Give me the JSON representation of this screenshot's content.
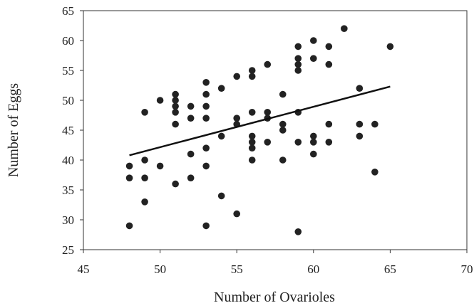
{
  "chart_data": {
    "type": "scatter",
    "title": "",
    "xlabel": "Number of Ovarioles",
    "ylabel": "Number of Eggs",
    "xlim": [
      45,
      70
    ],
    "ylim": [
      25,
      65
    ],
    "xticks": [
      "45",
      "50",
      "55",
      "60",
      "65",
      "70"
    ],
    "yticks": [
      "25",
      "30",
      "35",
      "40",
      "45",
      "50",
      "55",
      "60",
      "65"
    ],
    "grid": false,
    "legend": "none",
    "marker_color": "#222222",
    "trendline": {
      "x": [
        48,
        65
      ],
      "y": [
        40.8,
        52.3
      ]
    },
    "series": [
      {
        "points": [
          [
            48,
            39
          ],
          [
            48,
            37
          ],
          [
            48,
            29
          ],
          [
            49,
            48
          ],
          [
            49,
            40
          ],
          [
            49,
            37
          ],
          [
            49,
            33
          ],
          [
            50,
            50
          ],
          [
            50,
            39
          ],
          [
            51,
            51
          ],
          [
            51,
            50
          ],
          [
            51,
            49
          ],
          [
            51,
            48
          ],
          [
            51,
            46
          ],
          [
            51,
            36
          ],
          [
            52,
            49
          ],
          [
            52,
            47
          ],
          [
            52,
            41
          ],
          [
            52,
            37
          ],
          [
            53,
            53
          ],
          [
            53,
            51
          ],
          [
            53,
            49
          ],
          [
            53,
            47
          ],
          [
            53,
            42
          ],
          [
            53,
            39
          ],
          [
            53,
            29
          ],
          [
            54,
            52
          ],
          [
            54,
            44
          ],
          [
            54,
            34
          ],
          [
            55,
            54
          ],
          [
            55,
            47
          ],
          [
            55,
            46
          ],
          [
            55,
            31
          ],
          [
            56,
            55
          ],
          [
            56,
            54
          ],
          [
            56,
            48
          ],
          [
            56,
            44
          ],
          [
            56,
            43
          ],
          [
            56,
            42
          ],
          [
            56,
            40
          ],
          [
            57,
            56
          ],
          [
            57,
            48
          ],
          [
            57,
            47
          ],
          [
            57,
            43
          ],
          [
            58,
            51
          ],
          [
            58,
            46
          ],
          [
            58,
            45
          ],
          [
            58,
            40
          ],
          [
            59,
            59
          ],
          [
            59,
            57
          ],
          [
            59,
            56
          ],
          [
            59,
            55
          ],
          [
            59,
            48
          ],
          [
            59,
            43
          ],
          [
            59,
            28
          ],
          [
            60,
            60
          ],
          [
            60,
            57
          ],
          [
            60,
            44
          ],
          [
            60,
            43
          ],
          [
            60,
            41
          ],
          [
            61,
            59
          ],
          [
            61,
            56
          ],
          [
            61,
            46
          ],
          [
            61,
            43
          ],
          [
            62,
            62
          ],
          [
            63,
            52
          ],
          [
            63,
            46
          ],
          [
            63,
            44
          ],
          [
            64,
            46
          ],
          [
            64,
            38
          ],
          [
            65,
            59
          ]
        ]
      }
    ]
  }
}
